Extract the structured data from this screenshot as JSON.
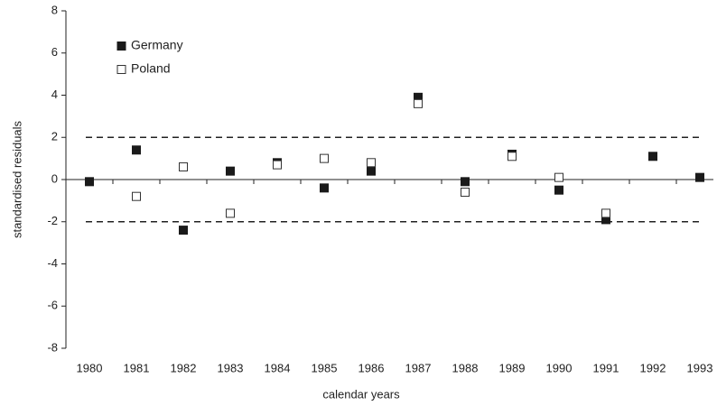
{
  "chart_data": {
    "type": "scatter",
    "x_label": "calendar years",
    "y_label": "standardised residuals",
    "categories": [
      "1980",
      "1981",
      "1982",
      "1983",
      "1984",
      "1985",
      "1986",
      "1987",
      "1988",
      "1989",
      "1990",
      "1991",
      "1992",
      "1993"
    ],
    "series": [
      {
        "name": "Germany",
        "color": "#1a1a1a",
        "filled": true,
        "values": [
          -0.1,
          1.4,
          -2.4,
          0.4,
          0.8,
          -0.4,
          0.4,
          3.9,
          -0.1,
          1.2,
          -0.5,
          -1.9,
          1.1,
          0.1
        ]
      },
      {
        "name": "Poland",
        "color": "#333333",
        "filled": false,
        "values": [
          null,
          -0.8,
          0.6,
          -1.6,
          0.7,
          1.0,
          0.8,
          3.6,
          -0.6,
          1.1,
          0.1,
          -1.6,
          null,
          null
        ]
      }
    ],
    "reference_lines": [
      2,
      -2
    ],
    "ylim": [
      -8,
      8
    ],
    "yticks": [
      -8,
      -6,
      -4,
      -2,
      0,
      2,
      4,
      6,
      8
    ],
    "legend": "upper left"
  }
}
